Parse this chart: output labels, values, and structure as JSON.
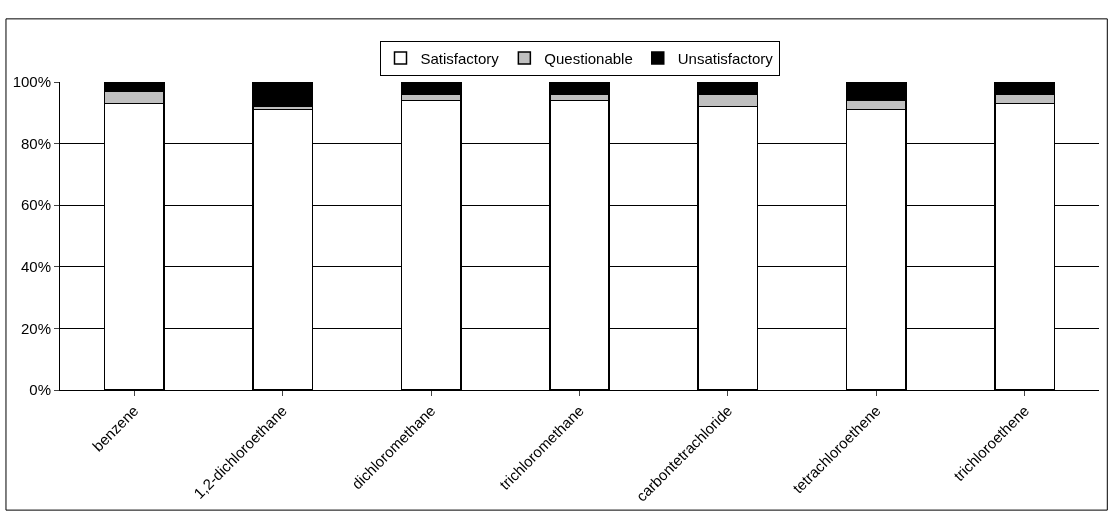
{
  "chart_data": {
    "type": "bar",
    "stacked": true,
    "categories": [
      "benzene",
      "1,2-dichloroethane",
      "dichloromethane",
      "trichloromethane",
      "carbontetrachloride",
      "tetrachloroethene",
      "trichloroethene"
    ],
    "series": [
      {
        "name": "Satisfactory",
        "color": "#ffffff",
        "values": [
          93,
          91,
          94,
          94,
          92,
          91,
          93
        ]
      },
      {
        "name": "Questionable",
        "color": "#c0c0c0",
        "values": [
          4,
          1,
          2,
          2,
          4,
          3,
          3
        ]
      },
      {
        "name": "Unsatisfactory",
        "color": "#000000",
        "values": [
          3,
          8,
          4,
          4,
          4,
          6,
          4
        ]
      }
    ],
    "ylim": [
      0,
      100
    ],
    "yticks": [
      {
        "value": 0,
        "label": "0%"
      },
      {
        "value": 20,
        "label": "20%"
      },
      {
        "value": 40,
        "label": "40%"
      },
      {
        "value": 60,
        "label": "60%"
      },
      {
        "value": 80,
        "label": "80%"
      },
      {
        "value": 100,
        "label": "100%"
      }
    ],
    "grid": "y",
    "legend": "top"
  }
}
